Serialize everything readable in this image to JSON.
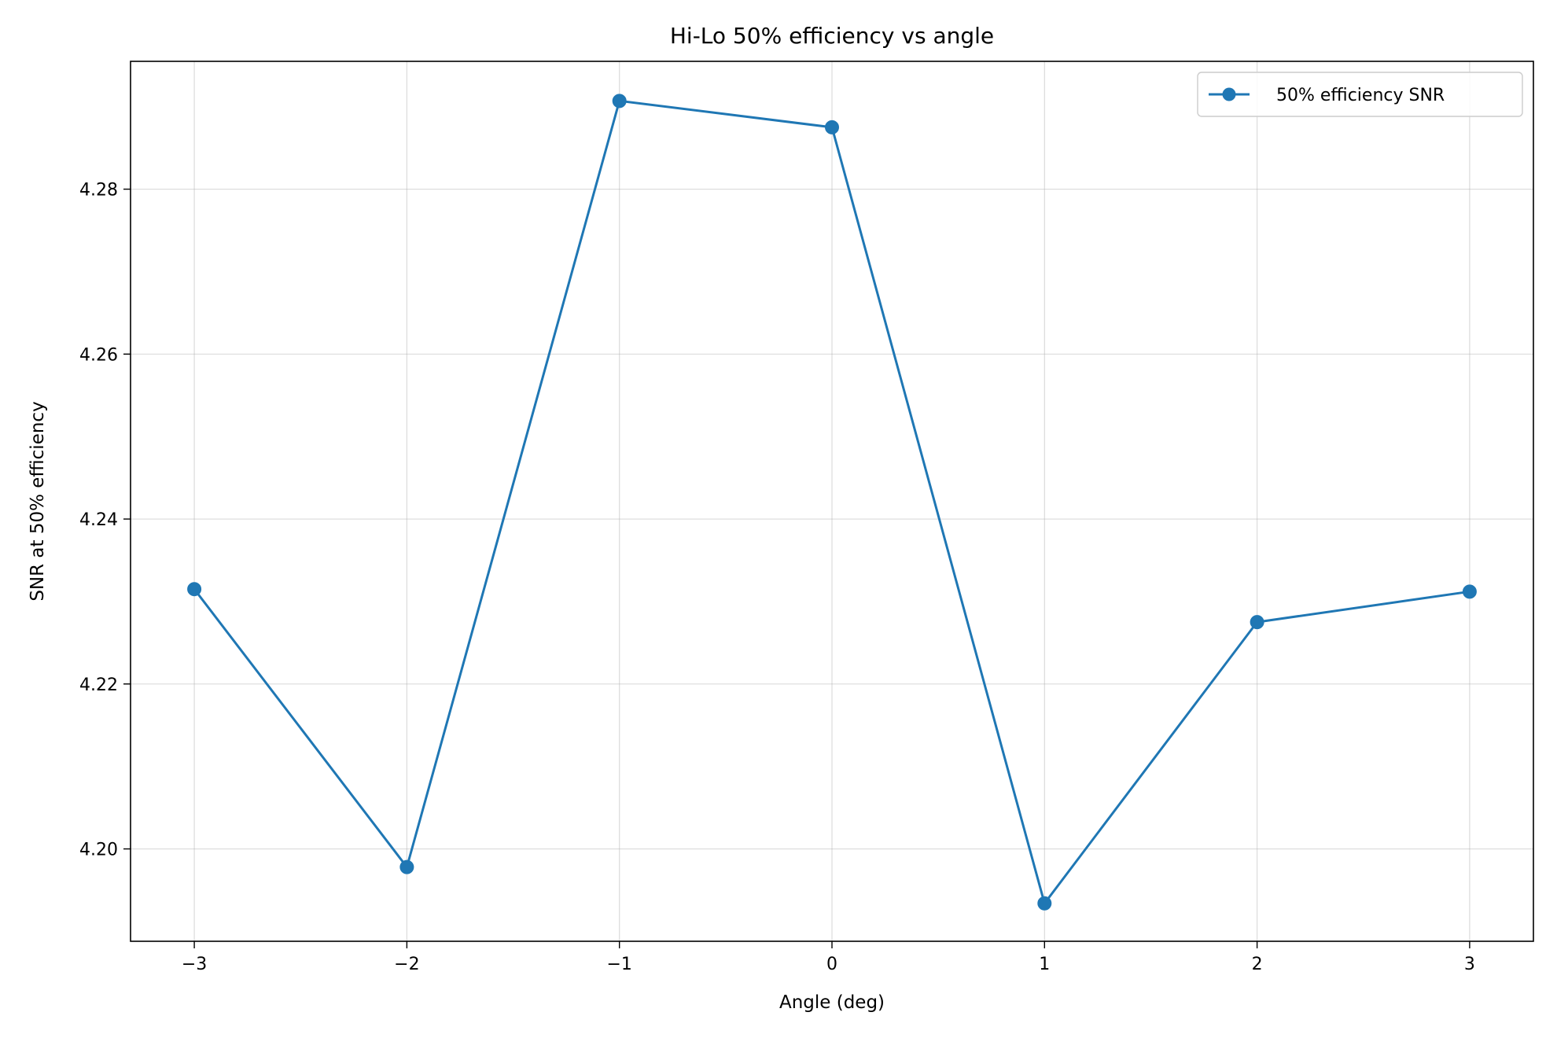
{
  "chart_data": {
    "type": "line",
    "title": "Hi-Lo 50% efficiency vs angle",
    "xlabel": "Angle (deg)",
    "ylabel": "SNR at 50% efficiency",
    "xlim": [
      -3.3,
      3.3
    ],
    "ylim": [
      4.1888,
      4.2955
    ],
    "xticks": [
      -3,
      -2,
      -1,
      0,
      1,
      2,
      3
    ],
    "xtick_labels": [
      "−3",
      "−2",
      "−1",
      "0",
      "1",
      "2",
      "3"
    ],
    "yticks": [
      4.2,
      4.22,
      4.24,
      4.26,
      4.28
    ],
    "ytick_labels": [
      "4.20",
      "4.22",
      "4.24",
      "4.26",
      "4.28"
    ],
    "grid": true,
    "legend_position": "top-right",
    "series": [
      {
        "name": "50% efficiency SNR",
        "color": "#1f77b4",
        "marker": "circle",
        "x": [
          -3,
          -2,
          -1,
          0,
          1,
          2,
          3
        ],
        "y": [
          4.2315,
          4.1978,
          4.2907,
          4.2875,
          4.1934,
          4.2275,
          4.2312
        ]
      }
    ]
  }
}
